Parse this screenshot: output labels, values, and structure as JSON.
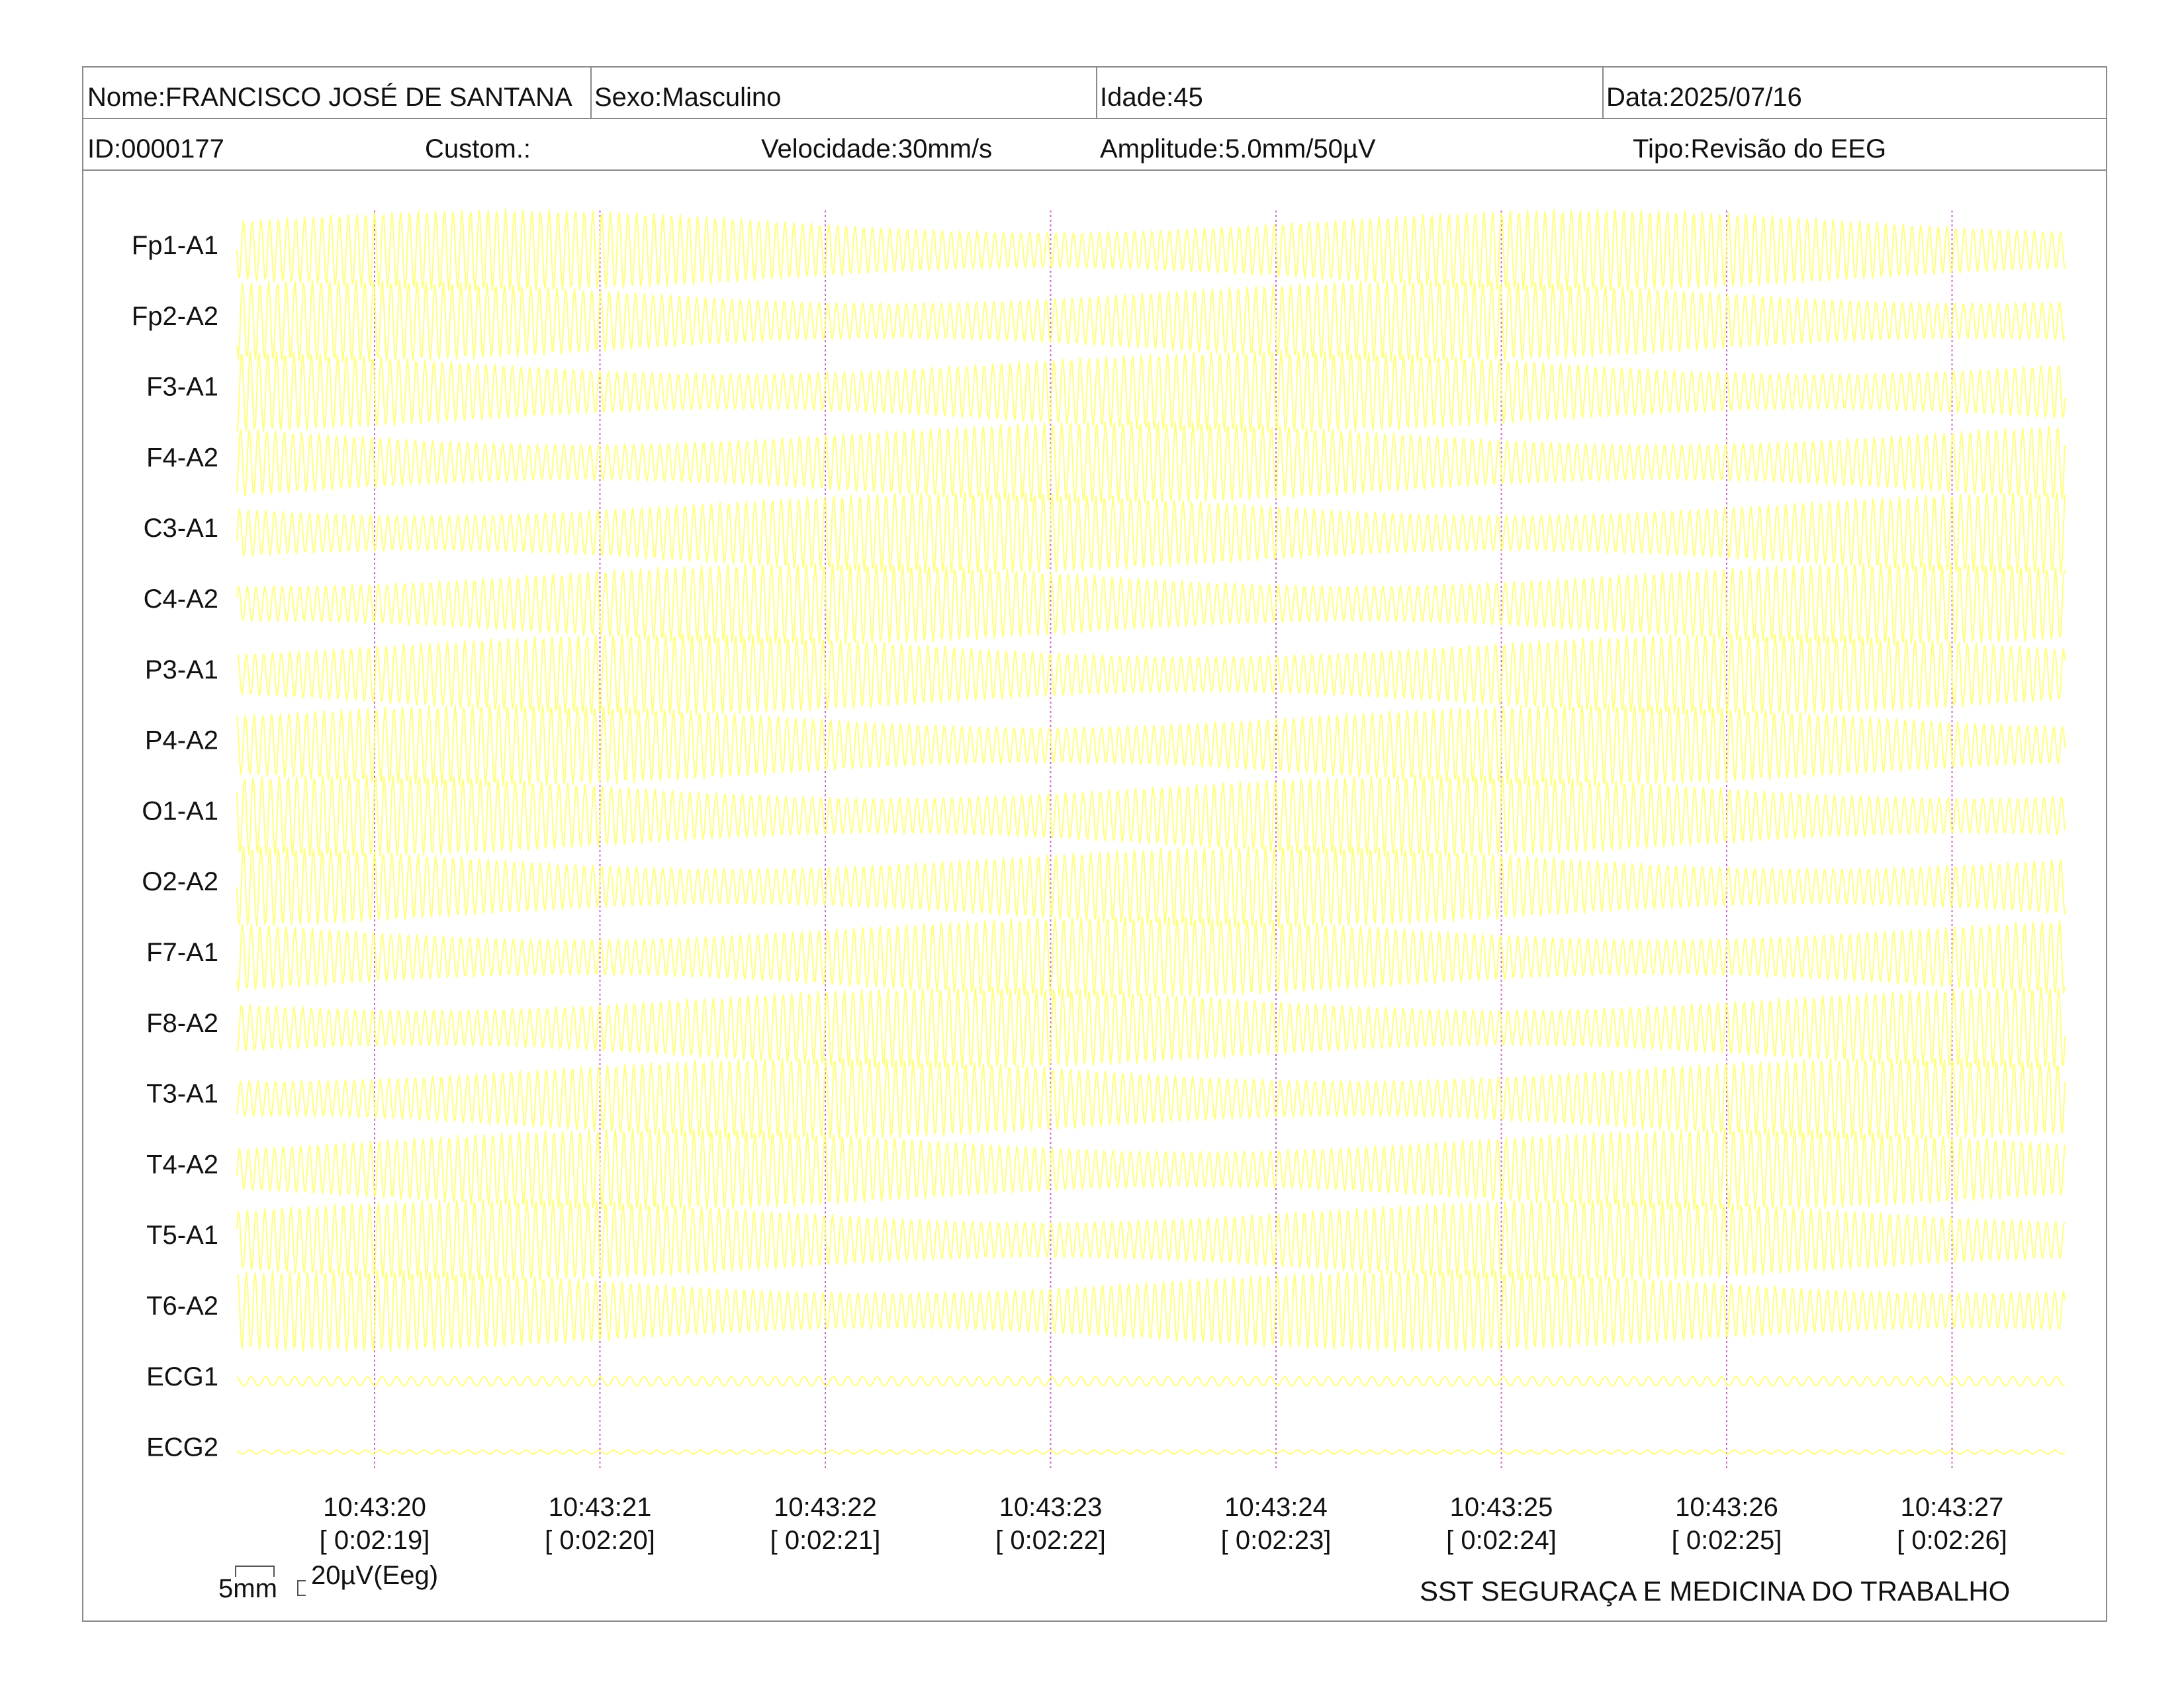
{
  "header": {
    "nome": "Nome:FRANCISCO JOSÉ DE SANTANA",
    "sexo": "Sexo:Masculino",
    "idade": "Idade:45",
    "data": "Data:2025/07/16",
    "id": "ID:0000177",
    "custom": "Custom.:",
    "velocidade": "Velocidade:30mm/s",
    "amplitude": "Amplitude:5.0mm/50µV",
    "tipo": "Tipo:Revisão do EEG"
  },
  "channels": [
    "Fp1-A1",
    "Fp2-A2",
    "F3-A1",
    "F4-A2",
    "C3-A1",
    "C4-A2",
    "P3-A1",
    "P4-A2",
    "O1-A1",
    "O2-A2",
    "F7-A1",
    "F8-A2",
    "T3-A1",
    "T4-A2",
    "T5-A1",
    "T6-A2",
    "ECG1",
    "ECG2"
  ],
  "time_marks": [
    {
      "clock": "10:43:20",
      "elapsed": "[ 0:02:19]"
    },
    {
      "clock": "10:43:21",
      "elapsed": "[ 0:02:20]"
    },
    {
      "clock": "10:43:22",
      "elapsed": "[ 0:02:21]"
    },
    {
      "clock": "10:43:23",
      "elapsed": "[ 0:02:22]"
    },
    {
      "clock": "10:43:24",
      "elapsed": "[ 0:02:23]"
    },
    {
      "clock": "10:43:25",
      "elapsed": "[ 0:02:24]"
    },
    {
      "clock": "10:43:26",
      "elapsed": "[ 0:02:25]"
    },
    {
      "clock": "10:43:27",
      "elapsed": "[ 0:02:26]"
    }
  ],
  "scale": {
    "time": "5mm",
    "amplitude": "20µV(Eeg)"
  },
  "footer": "SST SEGURAÇA E MEDICINA DO TRABALHO",
  "colors": {
    "trace": "#ffff66",
    "marker": "#cc66cc",
    "border": "#8a8a8a"
  }
}
